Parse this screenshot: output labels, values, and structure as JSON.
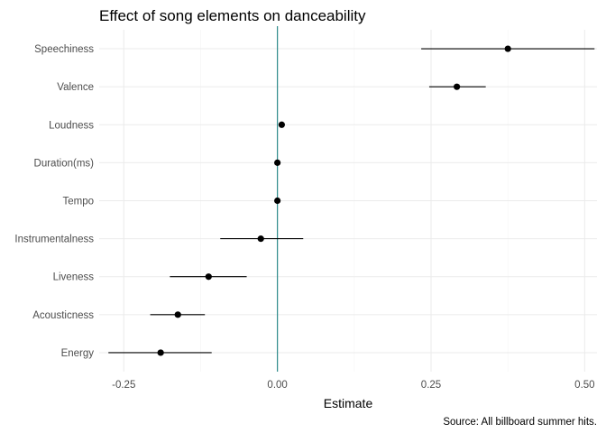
{
  "chart_data": {
    "type": "scatter",
    "title": "Effect of song elements on danceability",
    "xlabel": "Estimate",
    "ylabel": "",
    "caption": "Source: All billboard summer hits.",
    "xlim": [
      -0.29,
      0.52
    ],
    "x_ticks": [
      -0.25,
      0.0,
      0.25,
      0.5
    ],
    "x_tick_labels": [
      "-0.25",
      "0.00",
      "0.25",
      "0.50"
    ],
    "reference_line": {
      "x": 0,
      "color": "#2e8b8b"
    },
    "categories": [
      "Energy",
      "Acousticness",
      "Liveness",
      "Instrumentalness",
      "Tempo",
      "Duration(ms)",
      "Loudness",
      "Valence",
      "Speechiness"
    ],
    "series": [
      {
        "estimate": [
          -0.19,
          -0.162,
          -0.112,
          -0.027,
          0.0,
          0.0,
          0.007,
          0.292,
          0.375
        ],
        "lower": [
          -0.275,
          -0.207,
          -0.175,
          -0.093,
          0.0,
          0.0,
          0.007,
          0.247,
          0.234
        ],
        "upper": [
          -0.107,
          -0.118,
          -0.05,
          0.042,
          0.0,
          0.0,
          0.007,
          0.339,
          0.516
        ]
      }
    ],
    "grid": true,
    "point_color": "#000000"
  }
}
